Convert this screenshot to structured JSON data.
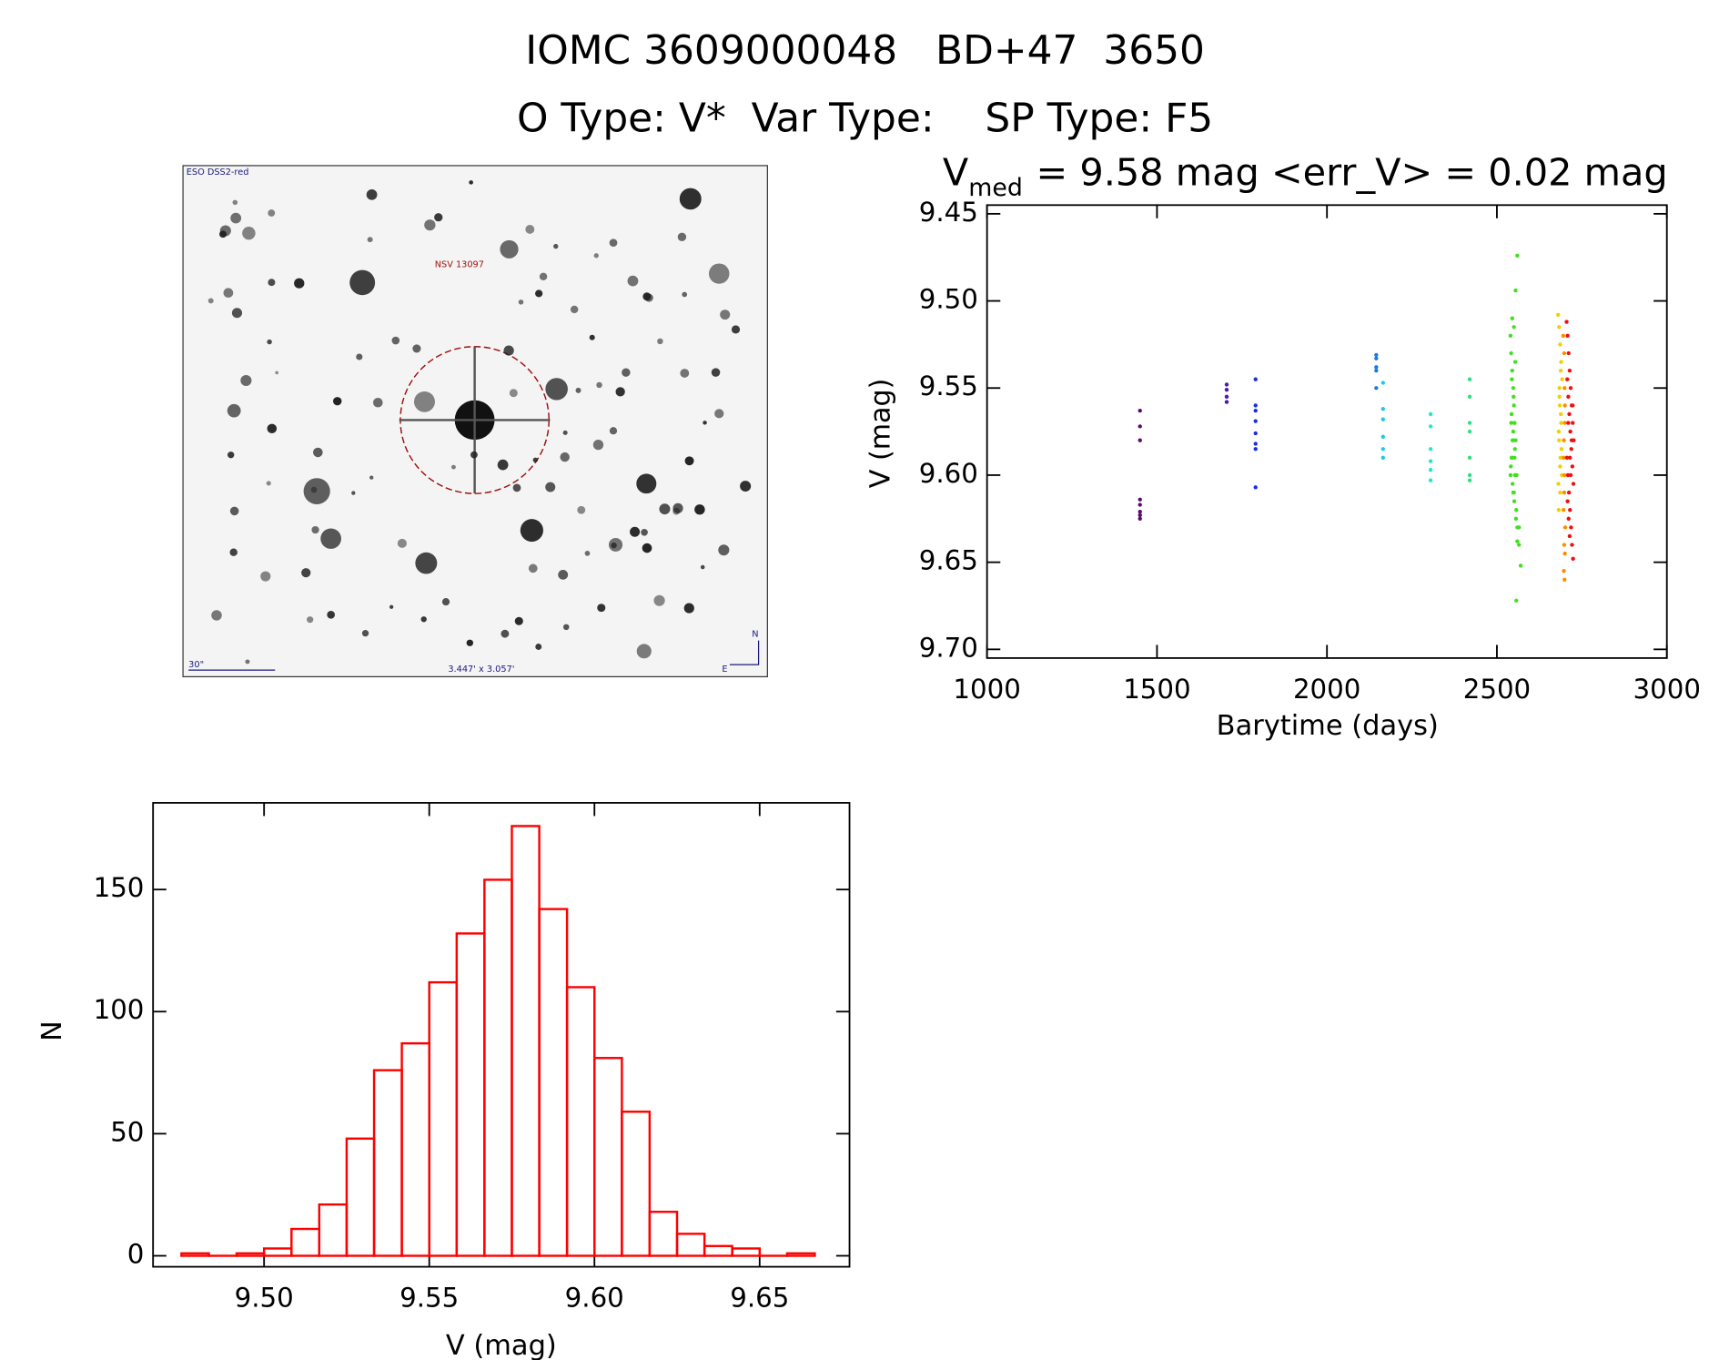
{
  "header": {
    "title": "IOMC 3609000048   BD+47  3650",
    "subtitle": "O Type: V*  Var Type:    SP Type: F5"
  },
  "image": {
    "labels": [
      "ESO DSS2-red",
      "NSV 13097",
      "30\"",
      "3.447' x 3.057'",
      "N",
      "E"
    ]
  },
  "chart_data": [
    {
      "type": "scatter",
      "title_main": "V",
      "title_sub": "med",
      "title_rest": "= 9.58 mag <err_V> = 0.02 mag",
      "x_label": "Barytime (days)",
      "y_label": "V (mag)",
      "xlim": [
        1000,
        3000
      ],
      "xticks": [
        1000,
        1500,
        2000,
        2500,
        3000
      ],
      "ylim": [
        9.705,
        9.445
      ],
      "yticks": [
        {
          "value": 9.45,
          "label": "9.45"
        },
        {
          "value": 9.5,
          "label": "9.50"
        },
        {
          "value": 9.55,
          "label": "9.55"
        },
        {
          "value": 9.6,
          "label": "9.60"
        },
        {
          "value": 9.65,
          "label": "9.65"
        },
        {
          "value": 9.7,
          "label": "9.70"
        }
      ],
      "series": [
        {
          "color": "#5a0a6e",
          "x": [
            1450,
            1450,
            1450,
            1450,
            1450,
            1450,
            1450,
            1450
          ],
          "values": [
            9.563,
            9.572,
            9.58,
            9.614,
            9.617,
            9.621,
            9.623,
            9.625
          ]
        },
        {
          "color": "#4a1aa8",
          "x": [
            1705,
            1705,
            1705,
            1705
          ],
          "values": [
            9.548,
            9.551,
            9.555,
            9.558
          ]
        },
        {
          "color": "#1a2ee0",
          "x": [
            1790,
            1790,
            1790,
            1790,
            1790,
            1790,
            1790,
            1790
          ],
          "values": [
            9.545,
            9.56,
            9.563,
            9.569,
            9.576,
            9.582,
            9.585,
            9.607
          ]
        },
        {
          "color": "#1a7ae0",
          "x": [
            2145,
            2145,
            2145,
            2145,
            2145
          ],
          "values": [
            9.531,
            9.533,
            9.538,
            9.54,
            9.55
          ]
        },
        {
          "color": "#20c8e8",
          "x": [
            2165,
            2165,
            2165,
            2165,
            2165,
            2165
          ],
          "values": [
            9.547,
            9.562,
            9.568,
            9.578,
            9.585,
            9.59
          ]
        },
        {
          "color": "#20e8c8",
          "x": [
            2305,
            2305,
            2305,
            2305,
            2305,
            2305
          ],
          "values": [
            9.565,
            9.572,
            9.585,
            9.592,
            9.597,
            9.603
          ]
        },
        {
          "color": "#30e080",
          "x": [
            2420,
            2420,
            2420,
            2420,
            2420,
            2420,
            2420
          ],
          "values": [
            9.545,
            9.555,
            9.57,
            9.575,
            9.59,
            9.6,
            9.603
          ]
        },
        {
          "color": "#40e020",
          "x": [
            2540,
            2542,
            2545,
            2548,
            2550,
            2552,
            2555,
            2545,
            2540,
            2550,
            2557,
            2560,
            2543,
            2548,
            2553,
            2541,
            2546,
            2551,
            2556,
            2544,
            2549,
            2554,
            2547,
            2552,
            2542,
            2558,
            2565,
            2570,
            2555,
            2560,
            2545,
            2550,
            2548,
            2553,
            2546,
            2551,
            2565,
            2560,
            2543,
            2557
          ],
          "values": [
            9.52,
            9.53,
            9.54,
            9.55,
            9.56,
            9.57,
            9.58,
            9.59,
            9.6,
            9.61,
            9.62,
            9.63,
            9.565,
            9.575,
            9.585,
            9.595,
            9.605,
            9.615,
            9.625,
            9.545,
            9.555,
            9.535,
            9.58,
            9.59,
            9.57,
            9.6,
            9.64,
            9.652,
            9.494,
            9.474,
            9.51,
            9.515,
            9.61,
            9.6,
            9.58,
            9.57,
            9.63,
            9.638,
            9.59,
            9.672
          ]
        },
        {
          "color": "#f0d000",
          "x": [
            2680,
            2683,
            2686,
            2689,
            2692,
            2684,
            2688,
            2682,
            2690,
            2686,
            2681,
            2685,
            2689,
            2683,
            2687,
            2691,
            2684,
            2688,
            2686,
            2682
          ],
          "values": [
            9.508,
            9.515,
            9.525,
            9.535,
            9.545,
            9.555,
            9.565,
            9.575,
            9.585,
            9.595,
            9.605,
            9.56,
            9.57,
            9.58,
            9.59,
            9.6,
            9.55,
            9.54,
            9.61,
            9.62
          ]
        },
        {
          "color": "#ff8c00",
          "x": [
            2695,
            2698,
            2700,
            2697,
            2699,
            2696,
            2701,
            2698,
            2700,
            2697,
            2699,
            2696,
            2700,
            2698,
            2699
          ],
          "values": [
            9.52,
            9.53,
            9.56,
            9.58,
            9.6,
            9.62,
            9.63,
            9.64,
            9.645,
            9.655,
            9.66,
            9.59,
            9.57,
            9.61,
            9.55
          ]
        },
        {
          "color": "#ee1010",
          "x": [
            2705,
            2708,
            2711,
            2714,
            2717,
            2720,
            2723,
            2726,
            2706,
            2709,
            2712,
            2715,
            2718,
            2721,
            2724,
            2707,
            2710,
            2713,
            2716,
            2719,
            2722,
            2725,
            2708,
            2711,
            2714,
            2717,
            2720,
            2723,
            2710,
            2715
          ],
          "values": [
            9.512,
            9.52,
            9.53,
            9.54,
            9.55,
            9.56,
            9.57,
            9.58,
            9.59,
            9.6,
            9.61,
            9.62,
            9.63,
            9.64,
            9.648,
            9.545,
            9.555,
            9.565,
            9.575,
            9.585,
            9.595,
            9.605,
            9.615,
            9.625,
            9.635,
            9.6,
            9.58,
            9.56,
            9.57,
            9.59
          ]
        }
      ]
    },
    {
      "type": "histogram",
      "x_label": "V (mag)",
      "y_label": "N",
      "color": "#ff0000",
      "bins": [
        9.475,
        9.4833,
        9.4917,
        9.5,
        9.5083,
        9.5167,
        9.525,
        9.5333,
        9.5417,
        9.55,
        9.5583,
        9.5667,
        9.575,
        9.5833,
        9.5917,
        9.6,
        9.6083,
        9.6167,
        9.625,
        9.6333,
        9.6417,
        9.65,
        9.6583,
        9.6667
      ],
      "values": [
        1,
        0,
        1,
        3,
        11,
        21,
        48,
        76,
        87,
        112,
        132,
        154,
        176,
        142,
        110,
        81,
        59,
        18,
        9,
        4,
        3,
        0,
        1
      ],
      "xlim": [
        9.4664,
        9.6772
      ],
      "xticks": [
        {
          "value": 9.5,
          "label": "9.50"
        },
        {
          "value": 9.55,
          "label": "9.55"
        },
        {
          "value": 9.6,
          "label": "9.60"
        },
        {
          "value": 9.65,
          "label": "9.65"
        }
      ],
      "ylim": [
        -4.5,
        185.5
      ],
      "yticks": [
        0,
        50,
        100,
        150
      ]
    }
  ]
}
